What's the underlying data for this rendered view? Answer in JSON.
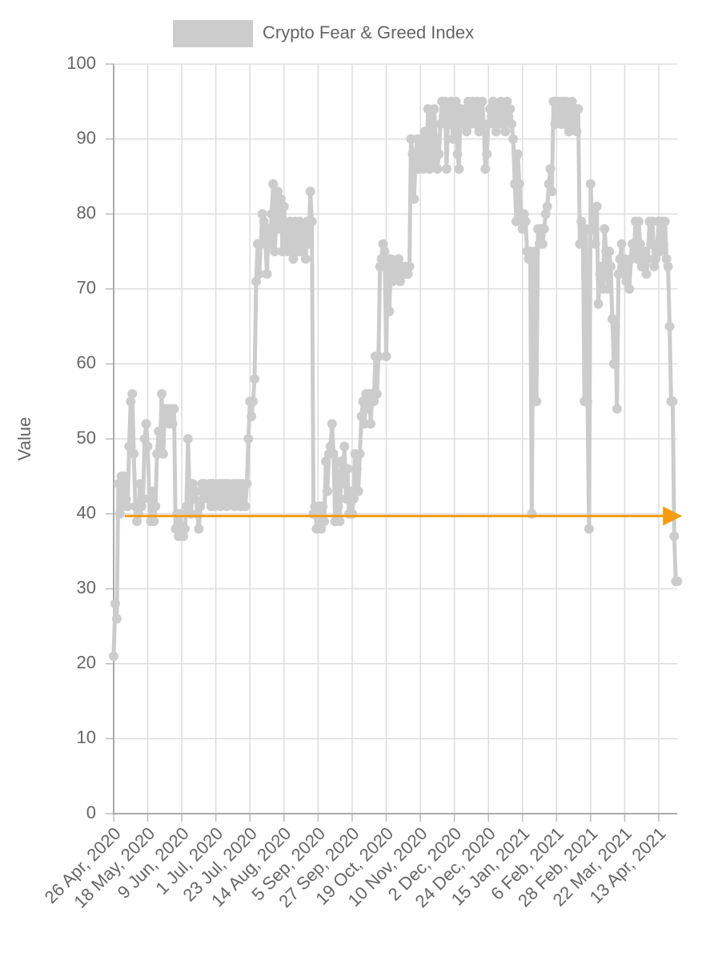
{
  "chart_data": {
    "type": "line",
    "legend_position": "top",
    "ylabel": "Value",
    "ylim": [
      0,
      100
    ],
    "yticks": [
      0,
      10,
      20,
      30,
      40,
      50,
      60,
      70,
      80,
      90,
      100
    ],
    "grid": true,
    "categories": [
      "26 Apr, 2020",
      null,
      null,
      null,
      null,
      null,
      null,
      null,
      null,
      null,
      null,
      null,
      null,
      null,
      null,
      null,
      null,
      null,
      null,
      null,
      null,
      null,
      "18 May, 2020",
      null,
      null,
      null,
      null,
      null,
      null,
      null,
      null,
      null,
      null,
      null,
      null,
      null,
      null,
      null,
      null,
      null,
      null,
      null,
      null,
      null,
      "9 Jun, 2020",
      null,
      null,
      null,
      null,
      null,
      null,
      null,
      null,
      null,
      null,
      null,
      null,
      null,
      null,
      null,
      null,
      null,
      null,
      null,
      null,
      null,
      "1 Jul, 2020",
      null,
      null,
      null,
      null,
      null,
      null,
      null,
      null,
      null,
      null,
      null,
      null,
      null,
      null,
      null,
      null,
      null,
      null,
      null,
      null,
      null,
      "23 Jul, 2020",
      null,
      null,
      null,
      null,
      null,
      null,
      null,
      null,
      null,
      null,
      null,
      null,
      null,
      null,
      null,
      null,
      null,
      null,
      null,
      null,
      null,
      "14 Aug, 2020",
      null,
      null,
      null,
      null,
      null,
      null,
      null,
      null,
      null,
      null,
      null,
      null,
      null,
      null,
      null,
      null,
      null,
      null,
      null,
      null,
      null,
      "5 Sep, 2020",
      null,
      null,
      null,
      null,
      null,
      null,
      null,
      null,
      null,
      null,
      null,
      null,
      null,
      null,
      null,
      null,
      null,
      null,
      null,
      null,
      null,
      "27 Sep, 2020",
      null,
      null,
      null,
      null,
      null,
      null,
      null,
      null,
      null,
      null,
      null,
      null,
      null,
      null,
      null,
      null,
      null,
      null,
      null,
      null,
      null,
      "19 Oct, 2020",
      null,
      null,
      null,
      null,
      null,
      null,
      null,
      null,
      null,
      null,
      null,
      null,
      null,
      null,
      null,
      null,
      null,
      null,
      null,
      null,
      null,
      "10 Nov, 2020",
      null,
      null,
      null,
      null,
      null,
      null,
      null,
      null,
      null,
      null,
      null,
      null,
      null,
      null,
      null,
      null,
      null,
      null,
      null,
      null,
      null,
      "2 Dec, 2020",
      null,
      null,
      null,
      null,
      null,
      null,
      null,
      null,
      null,
      null,
      null,
      null,
      null,
      null,
      null,
      null,
      null,
      null,
      null,
      null,
      null,
      "24 Dec, 2020",
      null,
      null,
      null,
      null,
      null,
      null,
      null,
      null,
      null,
      null,
      null,
      null,
      null,
      null,
      null,
      null,
      null,
      null,
      null,
      null,
      null,
      "15 Jan, 2021",
      null,
      null,
      null,
      null,
      null,
      null,
      null,
      null,
      null,
      null,
      null,
      null,
      null,
      null,
      null,
      null,
      null,
      null,
      null,
      null,
      null,
      "6 Feb, 2021",
      null,
      null,
      null,
      null,
      null,
      null,
      null,
      null,
      null,
      null,
      null,
      null,
      null,
      null,
      null,
      null,
      null,
      null,
      null,
      null,
      null,
      "28 Feb, 2021",
      null,
      null,
      null,
      null,
      null,
      null,
      null,
      null,
      null,
      null,
      null,
      null,
      null,
      null,
      null,
      null,
      null,
      null,
      null,
      null,
      null,
      "22 Mar, 2021",
      null,
      null,
      null,
      null,
      null,
      null,
      null,
      null,
      null,
      null,
      null,
      null,
      null,
      null,
      null,
      null,
      null,
      null,
      null,
      null,
      null,
      "13 Apr, 2021",
      null,
      null,
      null,
      null,
      null,
      null,
      null,
      null,
      null,
      null,
      null,
      null
    ],
    "series": [
      {
        "name": "Crypto Fear & Greed Index",
        "color": "#cccccc",
        "values": [
          21,
          28,
          26,
          44,
          40,
          45,
          41,
          45,
          42,
          41,
          49,
          55,
          56,
          48,
          41,
          39,
          40,
          44,
          41,
          42,
          50,
          52,
          49,
          42,
          39,
          43,
          39,
          41,
          48,
          51,
          49,
          56,
          48,
          54,
          53,
          54,
          52,
          54,
          52,
          54,
          38,
          40,
          37,
          40,
          38,
          37,
          38,
          41,
          50,
          43,
          40,
          44,
          42,
          43,
          40,
          38,
          41,
          44,
          42,
          44,
          43,
          42,
          44,
          41,
          44,
          41,
          44,
          42,
          44,
          41,
          44,
          42,
          44,
          41,
          44,
          42,
          43,
          44,
          41,
          44,
          42,
          44,
          41,
          44,
          43,
          41,
          44,
          50,
          55,
          53,
          55,
          58,
          71,
          76,
          72,
          76,
          80,
          79,
          76,
          72,
          78,
          76,
          80,
          84,
          75,
          79,
          83,
          78,
          82,
          75,
          81,
          77,
          75,
          78,
          79,
          75,
          74,
          79,
          76,
          75,
          79,
          75,
          76,
          78,
          74,
          79,
          76,
          83,
          79,
          40,
          41,
          38,
          40,
          41,
          38,
          41,
          39,
          47,
          43,
          48,
          49,
          52,
          48,
          39,
          47,
          41,
          39,
          47,
          44,
          49,
          42,
          46,
          40,
          43,
          40,
          42,
          48,
          46,
          43,
          48,
          53,
          55,
          52,
          56,
          54,
          56,
          52,
          56,
          55,
          61,
          56,
          61,
          73,
          74,
          76,
          75,
          61,
          73,
          67,
          74,
          71,
          72,
          73,
          72,
          74,
          71,
          73,
          72,
          73,
          72,
          72,
          73,
          90,
          88,
          82,
          88,
          90,
          86,
          90,
          88,
          86,
          91,
          87,
          94,
          86,
          93,
          87,
          94,
          90,
          86,
          88,
          92,
          95,
          93,
          95,
          86,
          94,
          92,
          95,
          90,
          93,
          95,
          88,
          86,
          94,
          93,
          92,
          94,
          91,
          95,
          92,
          93,
          95,
          94,
          92,
          95,
          91,
          93,
          95,
          92,
          86,
          88,
          92,
          94,
          93,
          95,
          92,
          91,
          94,
          93,
          95,
          92,
          94,
          91,
          95,
          93,
          94,
          92,
          90,
          84,
          79,
          88,
          84,
          80,
          78,
          80,
          79,
          75,
          74,
          75,
          40,
          70,
          75,
          55,
          78,
          76,
          78,
          76,
          78,
          80,
          81,
          84,
          86,
          83,
          95,
          92,
          95,
          93,
          95,
          92,
          95,
          92,
          95,
          93,
          91,
          94,
          95,
          92,
          94,
          91,
          94,
          76,
          79,
          78,
          55,
          78,
          55,
          38,
          84,
          78,
          80,
          76,
          81,
          68,
          72,
          73,
          70,
          78,
          75,
          70,
          75,
          73,
          66,
          60,
          65,
          54,
          72,
          74,
          76,
          72,
          74,
          71,
          73,
          70,
          74,
          76,
          75,
          79,
          74,
          79,
          76,
          73,
          74,
          75,
          72,
          74,
          79,
          76,
          79,
          73,
          74,
          76,
          79,
          75,
          79,
          76,
          79,
          74,
          73,
          65,
          55,
          55,
          37,
          31,
          31
        ]
      }
    ],
    "reference_line": {
      "value": 39.7,
      "color": "#f39c12"
    }
  }
}
